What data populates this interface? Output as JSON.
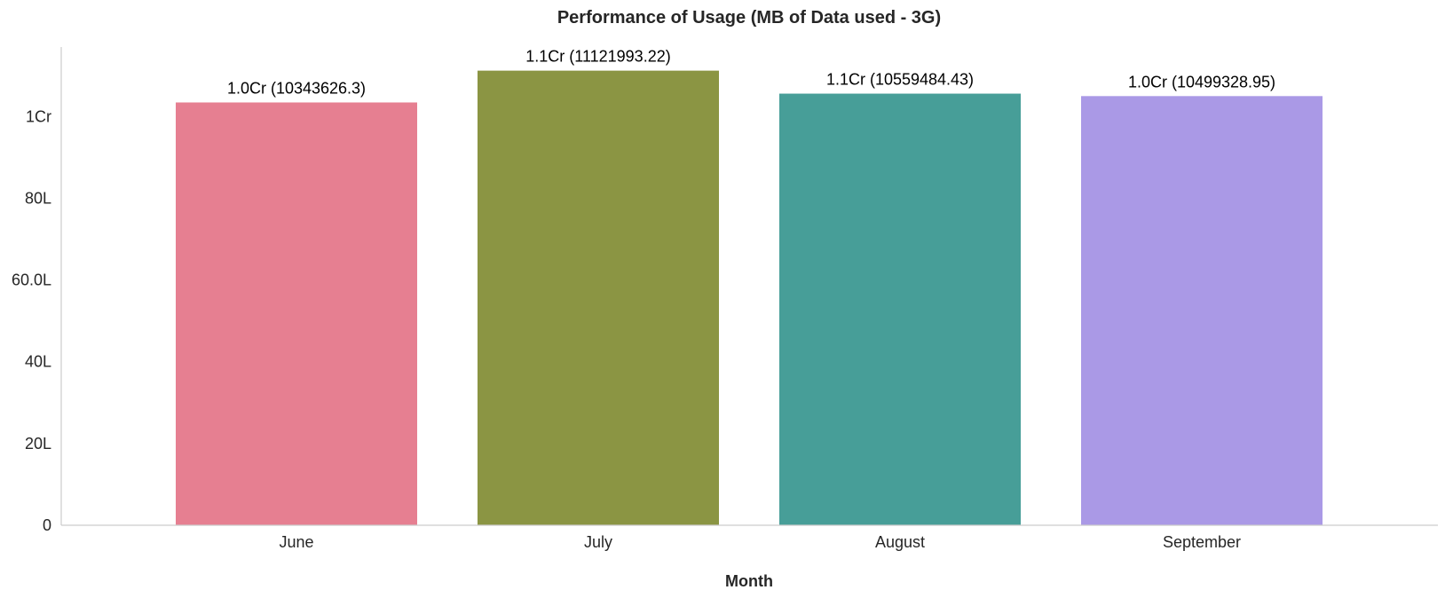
{
  "chart_data": {
    "type": "bar",
    "title": "Performance of Usage (MB of Data used - 3G)",
    "xlabel": "Month",
    "ylabel": "",
    "categories": [
      "June",
      "July",
      "August",
      "September"
    ],
    "values": [
      10343626.3,
      11121993.22,
      10559484.43,
      10499328.95
    ],
    "data_labels": [
      "1.0Cr (10343626.3)",
      "1.1Cr (11121993.22)",
      "1.1Cr (10559484.43)",
      "1.0Cr (10499328.95)"
    ],
    "colors": [
      "#e67f91",
      "#8b9543",
      "#479e98",
      "#aa99e6"
    ],
    "ylim": [
      0,
      11700000
    ],
    "yticks": [
      0,
      2000000,
      4000000,
      6000000,
      8000000,
      10000000
    ],
    "ytick_labels": [
      "0",
      "20L",
      "40L",
      "60.0L",
      "80L",
      "1Cr"
    ],
    "grid": false
  }
}
